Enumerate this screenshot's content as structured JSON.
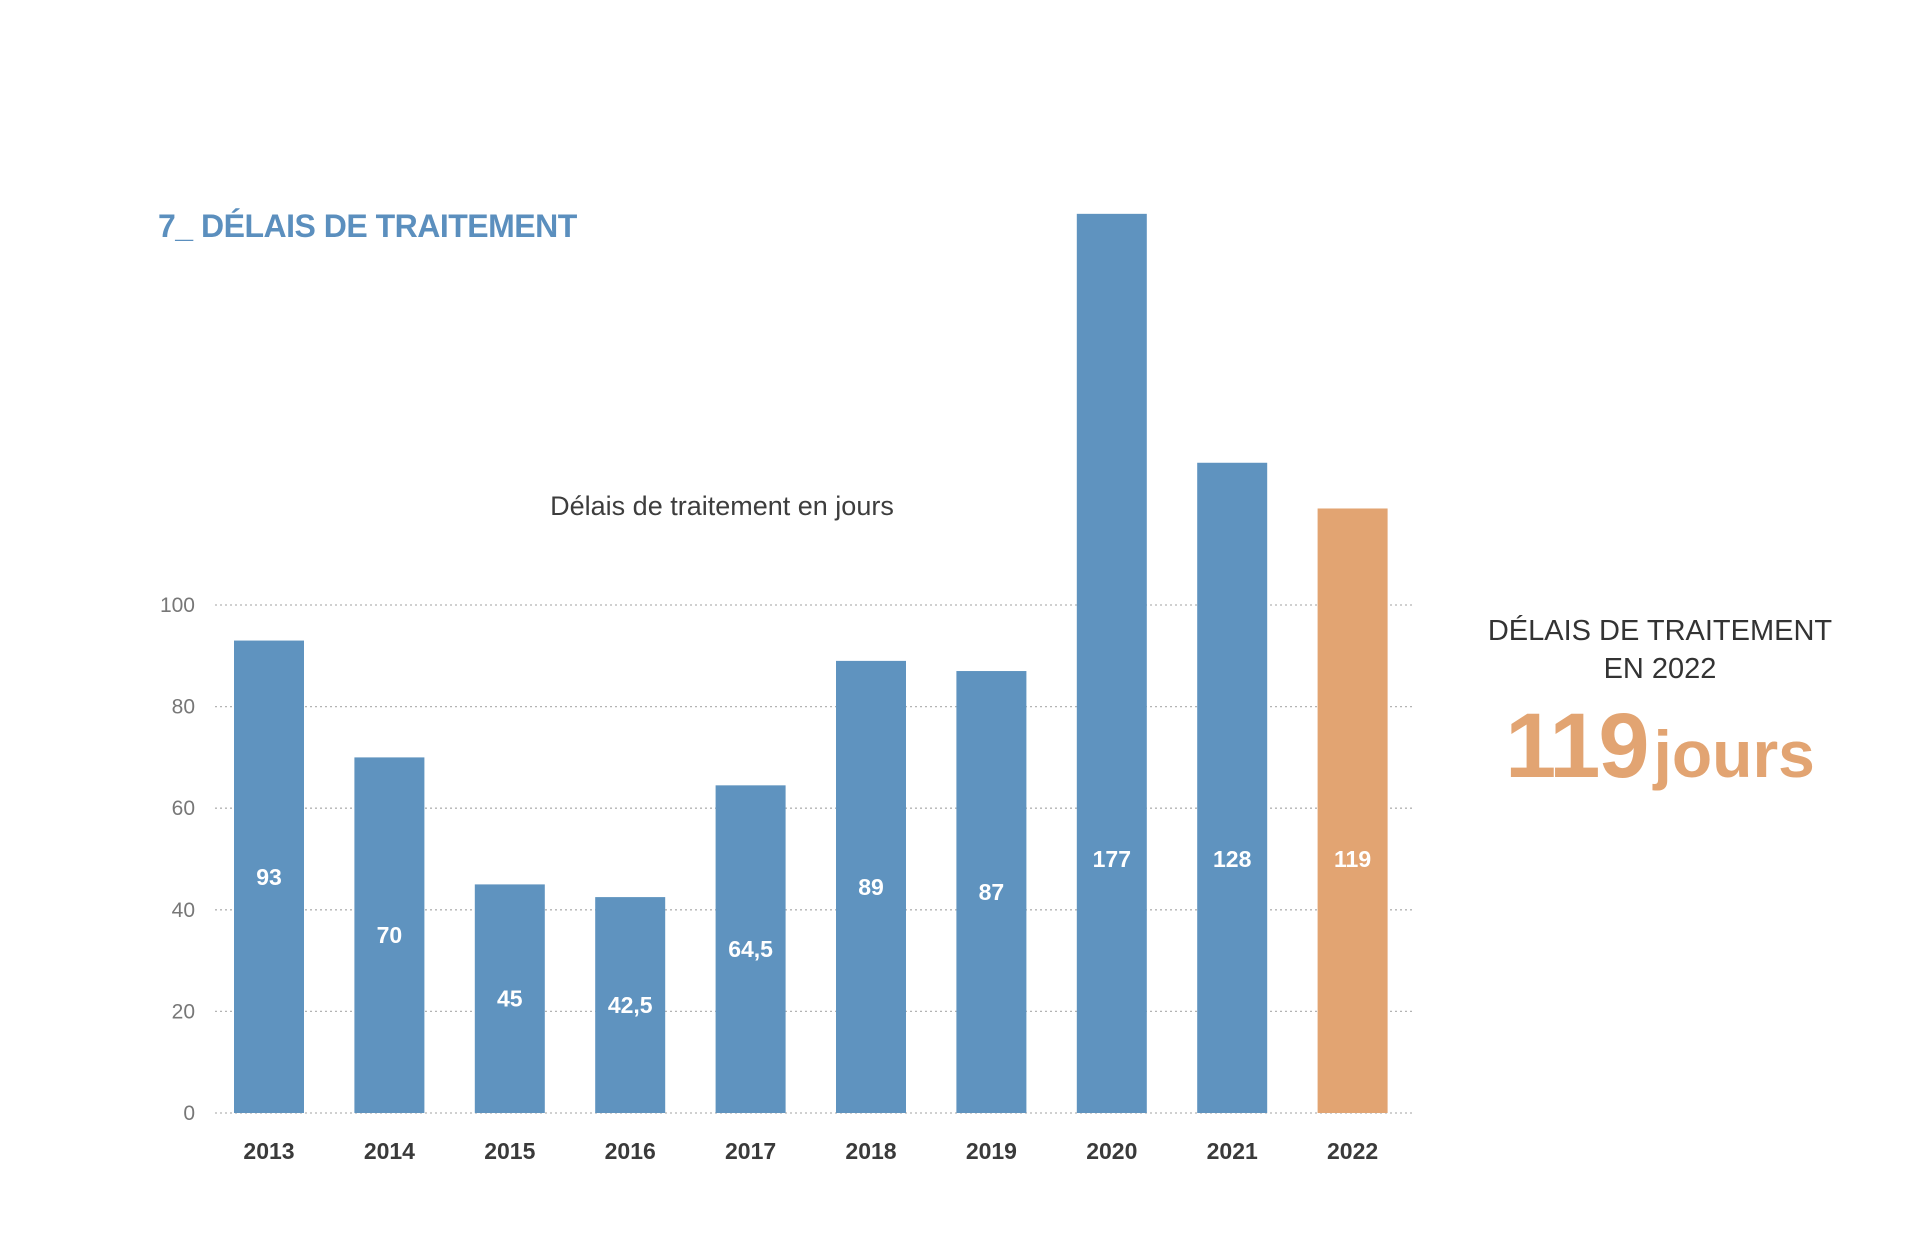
{
  "page": {
    "title": "7_ DÉLAIS DE TRAITEMENT"
  },
  "summary": {
    "line1": "DÉLAIS DE TRAITEMENT",
    "line2": "EN 2022",
    "value": "119",
    "unit": "jours"
  },
  "chart_data": {
    "type": "bar",
    "title": "Délais de traitement en jours",
    "xlabel": "",
    "ylabel": "",
    "categories": [
      "2013",
      "2014",
      "2015",
      "2016",
      "2017",
      "2018",
      "2019",
      "2020",
      "2021",
      "2022"
    ],
    "values": [
      93,
      70,
      45,
      42.5,
      64.5,
      89,
      87,
      177,
      128,
      119
    ],
    "value_labels": [
      "93",
      "70",
      "45",
      "42,5",
      "64,5",
      "89",
      "87",
      "177",
      "128",
      "119"
    ],
    "yticks": [
      0,
      20,
      40,
      60,
      80,
      100
    ],
    "ylim": [
      0,
      100
    ],
    "grid": true,
    "colors": {
      "bar": "#5f93bf",
      "highlight": "#e2a472",
      "title": "#5b8fbe"
    },
    "highlight_category": "2022"
  }
}
